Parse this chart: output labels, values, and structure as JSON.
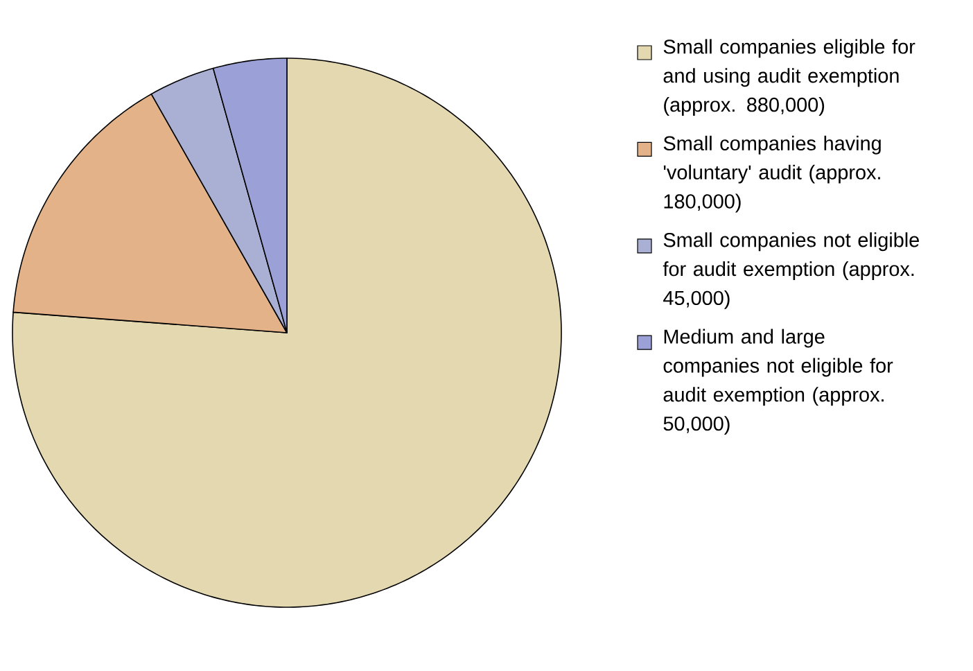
{
  "chart_data": {
    "type": "pie",
    "categories": [
      "Small companies eligible for and using audit exemption (approx. 880,000)",
      "Small companies having 'voluntary' audit (approx. 180,000)",
      "Small companies not eligible for audit exemption (approx. 45,000)",
      "Medium and large companies not eligible for audit exemption (approx. 50,000)"
    ],
    "values": [
      880000,
      180000,
      45000,
      50000
    ],
    "colors": [
      "#e3d8b0",
      "#e3b288",
      "#a9b0d3",
      "#9ba0d6"
    ],
    "legend": "right"
  }
}
